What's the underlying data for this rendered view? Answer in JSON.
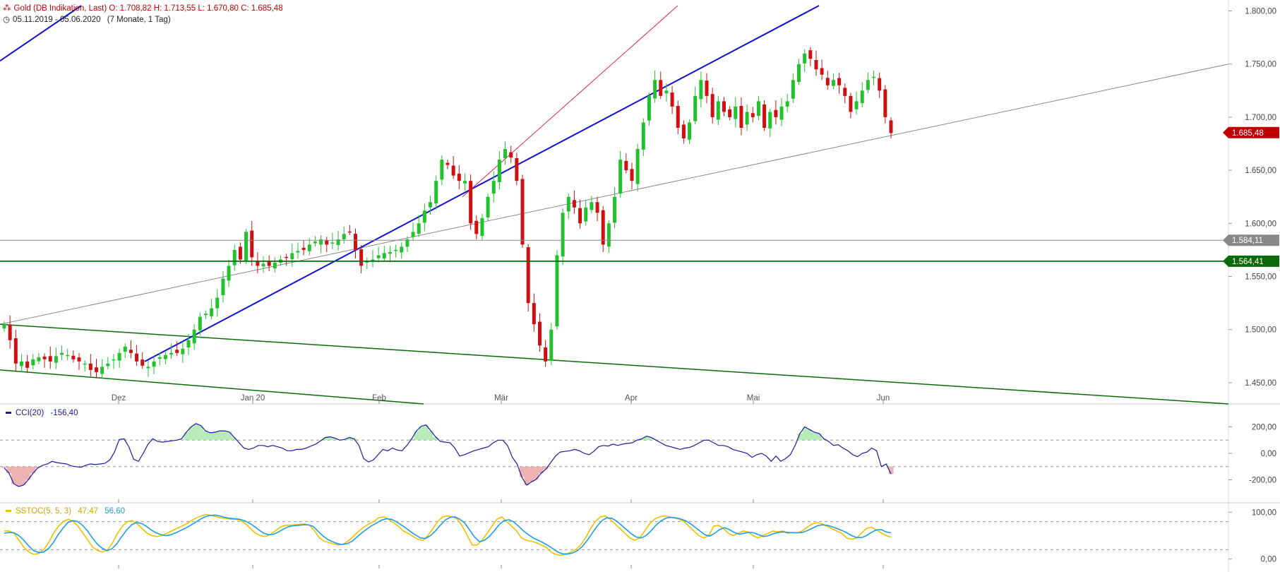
{
  "header": {
    "title": "Gold (DB Indikation, Last)",
    "open": "O: 1.708,82",
    "high": "H: 1.713,55",
    "low": "L: 1.670,80",
    "close": "C: 1.685,48",
    "date_range": "05.11.2019 - 05.06.2020",
    "period": "(7 Monate, 1 Tag)"
  },
  "colors": {
    "up": "#22c22e",
    "down": "#d01010",
    "support_green": "#0a6a0a",
    "trend_blue": "#1010d0",
    "line_gray": "#888888",
    "cci": "#1a1aa0",
    "stoch_k": "#f0c000",
    "stoch_d": "#1e9ee0"
  },
  "chart_data": [
    {
      "type": "candlestick",
      "title": "Gold (DB Indikation, Last)",
      "x_labels": [
        "Dez",
        "Jan 20",
        "Feb",
        "Mär",
        "Apr",
        "Mai",
        "Jun"
      ],
      "y_ticks": [
        "1.450,00",
        "1.500,00",
        "1.550,00",
        "1.600,00",
        "1.650,00",
        "1.700,00",
        "1.750,00",
        "1.800,00"
      ],
      "ylim": [
        1430,
        1805
      ],
      "last_price": "1.685,48",
      "level_labels": [
        "1.584,11",
        "1.564,41"
      ],
      "levels": [
        1584.11,
        1564.41
      ],
      "candles_close": [
        1505,
        1490,
        1468,
        1470,
        1464,
        1472,
        1474,
        1472,
        1470,
        1475,
        1478,
        1476,
        1472,
        1470,
        1468,
        1462,
        1460,
        1465,
        1468,
        1472,
        1478,
        1484,
        1478,
        1470,
        1466,
        1465,
        1470,
        1474,
        1476,
        1478,
        1478,
        1482,
        1490,
        1500,
        1512,
        1515,
        1520,
        1530,
        1548,
        1560,
        1575,
        1566,
        1592,
        1568,
        1560,
        1562,
        1560,
        1563,
        1566,
        1568,
        1572,
        1574,
        1575,
        1580,
        1583,
        1585,
        1580,
        1582,
        1585,
        1590,
        1592,
        1575,
        1560,
        1565,
        1566,
        1570,
        1572,
        1573,
        1575,
        1578,
        1585,
        1592,
        1600,
        1612,
        1620,
        1640,
        1660,
        1655,
        1645,
        1640,
        1640,
        1600,
        1590,
        1605,
        1625,
        1640,
        1660,
        1670,
        1662,
        1640,
        1580,
        1525,
        1505,
        1485,
        1470,
        1500,
        1570,
        1610,
        1625,
        1615,
        1600,
        1615,
        1620,
        1610,
        1580,
        1600,
        1625,
        1660,
        1650,
        1640,
        1670,
        1695,
        1720,
        1735,
        1720,
        1725,
        1710,
        1690,
        1680,
        1695,
        1720,
        1735,
        1720,
        1700,
        1715,
        1705,
        1700,
        1710,
        1690,
        1705,
        1700,
        1715,
        1690,
        1705,
        1700,
        1710,
        1715,
        1735,
        1750,
        1760,
        1755,
        1745,
        1740,
        1730,
        1735,
        1730,
        1720,
        1705,
        1715,
        1725,
        1735,
        1738,
        1725,
        1700,
        1685
      ]
    },
    {
      "type": "line",
      "title": "CCI(20)",
      "value_label": "-156,40",
      "y_ticks": [
        "200,00",
        "0,00",
        "-200,00"
      ],
      "ylim": [
        -320,
        320
      ],
      "values": [
        -110,
        -150,
        -230,
        -250,
        -240,
        -200,
        -150,
        -110,
        -90,
        -80,
        -60,
        -70,
        -75,
        -80,
        -95,
        -100,
        -105,
        -90,
        -80,
        -85,
        -80,
        -75,
        -50,
        10,
        105,
        110,
        50,
        -45,
        -60,
        0,
        70,
        110,
        90,
        85,
        90,
        95,
        100,
        110,
        160,
        200,
        225,
        210,
        170,
        155,
        160,
        170,
        170,
        160,
        120,
        80,
        40,
        30,
        40,
        60,
        60,
        50,
        60,
        50,
        40,
        20,
        20,
        30,
        30,
        40,
        55,
        70,
        95,
        120,
        125,
        115,
        100,
        105,
        120,
        110,
        60,
        -40,
        -65,
        -50,
        -10,
        30,
        20,
        40,
        25,
        20,
        60,
        110,
        170,
        205,
        215,
        170,
        125,
        90,
        85,
        80,
        40,
        -20,
        -10,
        5,
        20,
        30,
        40,
        50,
        80,
        100,
        100,
        60,
        -30,
        -80,
        -180,
        -240,
        -215,
        -195,
        -150,
        -120,
        -70,
        -20,
        10,
        15,
        20,
        30,
        20,
        0,
        -10,
        15,
        50,
        60,
        55,
        70,
        60,
        70,
        75,
        80,
        100,
        110,
        130,
        120,
        100,
        80,
        60,
        50,
        40,
        30,
        40,
        45,
        60,
        80,
        100,
        100,
        80,
        60,
        60,
        50,
        30,
        20,
        10,
        0,
        -30,
        -10,
        0,
        -20,
        -60,
        -20,
        -60,
        -40,
        -10,
        60,
        150,
        200,
        180,
        160,
        150,
        110,
        90,
        60,
        65,
        40,
        20,
        -10,
        -25,
        0,
        10,
        40,
        20,
        -100,
        -80,
        -156
      ]
    },
    {
      "type": "line",
      "title": "SSTOC(5, 5, 3)",
      "series": [
        {
          "name": "47,47",
          "values": [
            60,
            60,
            55,
            40,
            25,
            15,
            10,
            12,
            20,
            35,
            55,
            70,
            80,
            85,
            80,
            70,
            55,
            40,
            25,
            18,
            15,
            20,
            35,
            55,
            70,
            80,
            82,
            75,
            65,
            55,
            50,
            48,
            50,
            55,
            60,
            65,
            70,
            75,
            82,
            88,
            92,
            95,
            93,
            90,
            88,
            87,
            85,
            85,
            82,
            75,
            65,
            55,
            50,
            48,
            52,
            60,
            68,
            72,
            72,
            73,
            74,
            75,
            72,
            60,
            45,
            38,
            35,
            32,
            30,
            33,
            40,
            50,
            60,
            68,
            75,
            80,
            88,
            90,
            85,
            78,
            70,
            60,
            55,
            48,
            42,
            40,
            50,
            65,
            80,
            90,
            92,
            90,
            85,
            70,
            50,
            30,
            30,
            40,
            55,
            70,
            85,
            90,
            80,
            70,
            60,
            45,
            40,
            38,
            35,
            30,
            25,
            15,
            10,
            8,
            10,
            15,
            20,
            30,
            45,
            65,
            80,
            90,
            92,
            85,
            75,
            65,
            55,
            45,
            40,
            45,
            60,
            75,
            85,
            90,
            92,
            90,
            88,
            85,
            80,
            70,
            60,
            50,
            45,
            50,
            70,
            72,
            65,
            55,
            50,
            55,
            60,
            58,
            50,
            45,
            50,
            55,
            60,
            58,
            60,
            55,
            57,
            56,
            60,
            68,
            75,
            78,
            75,
            70,
            65,
            60,
            55,
            45,
            42,
            45,
            55,
            65,
            68,
            62,
            56,
            50,
            47
          ]
        },
        {
          "name": "56,60",
          "values": [
            55,
            57,
            56,
            50,
            40,
            28,
            18,
            14,
            15,
            22,
            35,
            52,
            66,
            78,
            82,
            80,
            72,
            60,
            45,
            32,
            23,
            18,
            22,
            33,
            48,
            62,
            73,
            78,
            76,
            70,
            62,
            56,
            52,
            50,
            52,
            56,
            61,
            66,
            72,
            78,
            85,
            90,
            93,
            94,
            92,
            89,
            87,
            86,
            85,
            82,
            77,
            70,
            62,
            55,
            52,
            53,
            58,
            64,
            69,
            71,
            72,
            73,
            73,
            70,
            60,
            50,
            42,
            37,
            33,
            31,
            33,
            38,
            47,
            56,
            64,
            71,
            77,
            83,
            86,
            85,
            80,
            73,
            66,
            58,
            51,
            45,
            44,
            50,
            60,
            72,
            83,
            89,
            90,
            85,
            77,
            62,
            47,
            37,
            40,
            48,
            60,
            73,
            82,
            84,
            79,
            70,
            60,
            52,
            45,
            40,
            35,
            29,
            22,
            15,
            11,
            11,
            13,
            18,
            27,
            40,
            55,
            70,
            82,
            88,
            87,
            81,
            72,
            63,
            54,
            47,
            45,
            50,
            60,
            72,
            81,
            87,
            89,
            88,
            86,
            82,
            76,
            68,
            60,
            52,
            49,
            55,
            63,
            67,
            63,
            57,
            53,
            55,
            57,
            56,
            52,
            48,
            50,
            54,
            57,
            58,
            57,
            56,
            56,
            57,
            61,
            66,
            71,
            73,
            72,
            69,
            65,
            61,
            56,
            50,
            46,
            46,
            50,
            57,
            62,
            63,
            58,
            56
          ]
        }
      ],
      "y_ticks": [
        "100,00",
        "0,00"
      ],
      "ylim": [
        -20,
        120
      ]
    }
  ],
  "indicators": {
    "cci_label": "CCI(20)",
    "cci_value": "-156,40",
    "stoch_label": "SSTOC(5, 5, 3)",
    "stoch_k_value": "47,47",
    "stoch_d_value": "56,60"
  }
}
